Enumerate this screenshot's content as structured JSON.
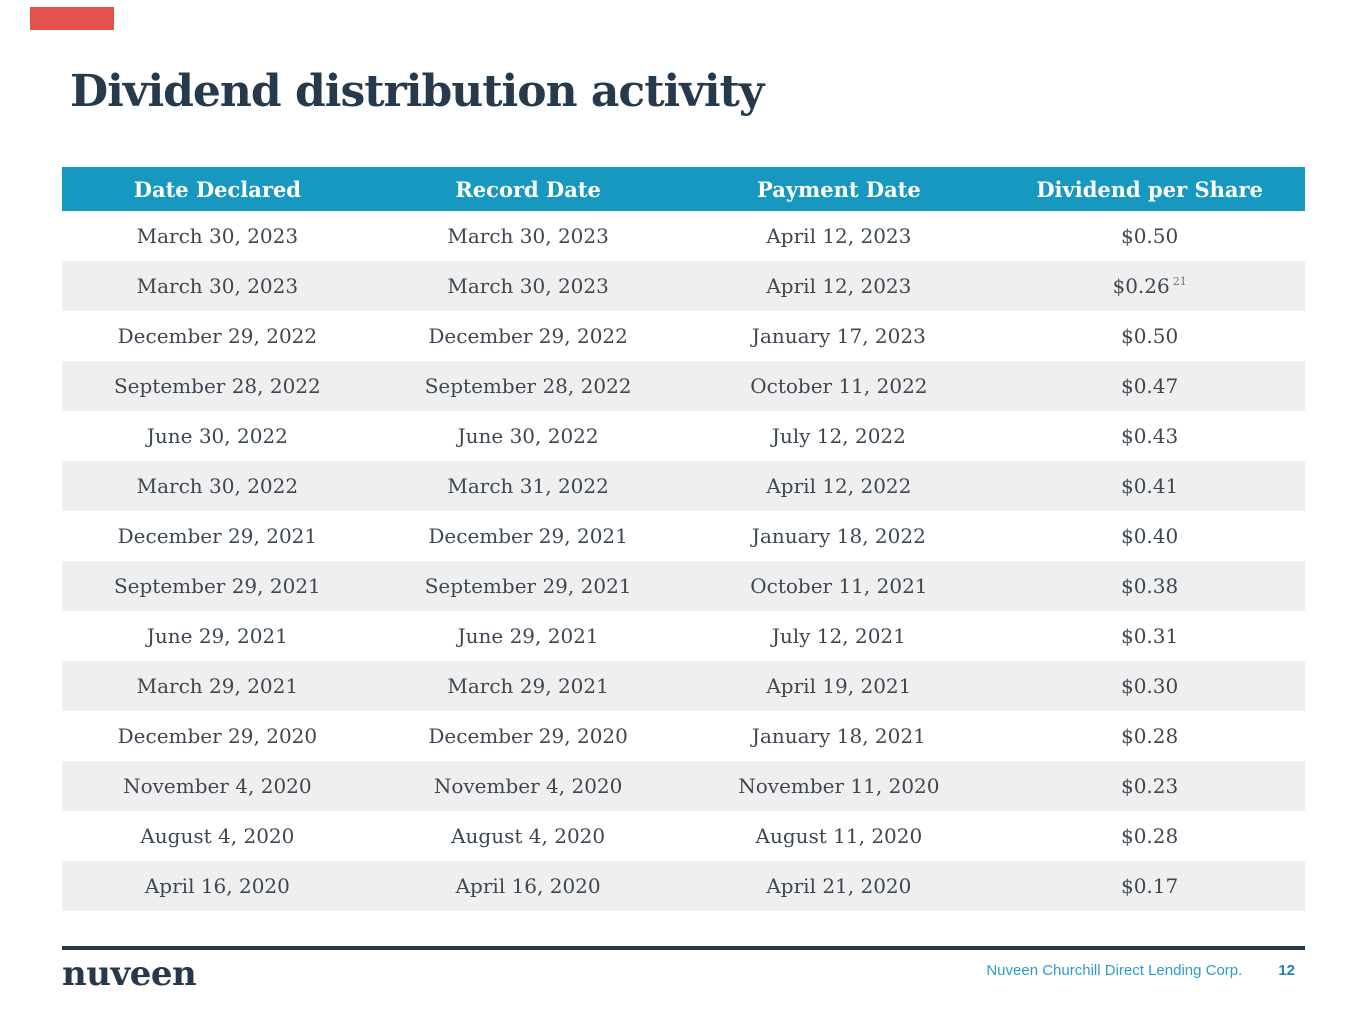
{
  "title": "Dividend distribution activity",
  "colors": {
    "accent": "#e4524e",
    "header_bg": "#1798c1",
    "header_text": "#ffffff",
    "row_alt_bg": "#efefef",
    "body_text": "#3c4752",
    "title_text": "#273a4b",
    "footer_rule": "#26384a",
    "company_text": "#2e9cc9",
    "page_number_text": "#1c80b0"
  },
  "table": {
    "headers": [
      "Date Declared",
      "Record Date",
      "Payment Date",
      "Dividend per Share"
    ],
    "rows": [
      {
        "date_declared": "March 30, 2023",
        "record_date": "March 30, 2023",
        "payment_date": "April 12, 2023",
        "dividend": "$0.50",
        "note": ""
      },
      {
        "date_declared": "March 30, 2023",
        "record_date": "March 30, 2023",
        "payment_date": "April 12, 2023",
        "dividend": "$0.26",
        "note": "21"
      },
      {
        "date_declared": "December 29, 2022",
        "record_date": "December 29, 2022",
        "payment_date": "January 17, 2023",
        "dividend": "$0.50",
        "note": ""
      },
      {
        "date_declared": "September 28, 2022",
        "record_date": "September 28, 2022",
        "payment_date": "October 11, 2022",
        "dividend": "$0.47",
        "note": ""
      },
      {
        "date_declared": "June 30, 2022",
        "record_date": "June 30, 2022",
        "payment_date": "July 12, 2022",
        "dividend": "$0.43",
        "note": ""
      },
      {
        "date_declared": "March 30, 2022",
        "record_date": "March 31, 2022",
        "payment_date": "April 12, 2022",
        "dividend": "$0.41",
        "note": ""
      },
      {
        "date_declared": "December 29, 2021",
        "record_date": "December 29, 2021",
        "payment_date": "January 18, 2022",
        "dividend": "$0.40",
        "note": ""
      },
      {
        "date_declared": "September 29, 2021",
        "record_date": "September 29, 2021",
        "payment_date": "October 11, 2021",
        "dividend": "$0.38",
        "note": ""
      },
      {
        "date_declared": "June 29, 2021",
        "record_date": "June 29, 2021",
        "payment_date": "July 12, 2021",
        "dividend": "$0.31",
        "note": ""
      },
      {
        "date_declared": "March 29, 2021",
        "record_date": "March 29, 2021",
        "payment_date": "April 19, 2021",
        "dividend": "$0.30",
        "note": ""
      },
      {
        "date_declared": "December 29, 2020",
        "record_date": "December 29, 2020",
        "payment_date": "January 18, 2021",
        "dividend": "$0.28",
        "note": ""
      },
      {
        "date_declared": "November 4, 2020",
        "record_date": "November 4, 2020",
        "payment_date": "November 11, 2020",
        "dividend": "$0.23",
        "note": ""
      },
      {
        "date_declared": "August 4, 2020",
        "record_date": "August 4, 2020",
        "payment_date": "August 11, 2020",
        "dividend": "$0.28",
        "note": ""
      },
      {
        "date_declared": "April 16, 2020",
        "record_date": "April 16, 2020",
        "payment_date": "April 21, 2020",
        "dividend": "$0.17",
        "note": ""
      }
    ]
  },
  "footer": {
    "logo": "nuveen",
    "company": "Nuveen Churchill Direct Lending Corp.",
    "page_number": "12"
  }
}
